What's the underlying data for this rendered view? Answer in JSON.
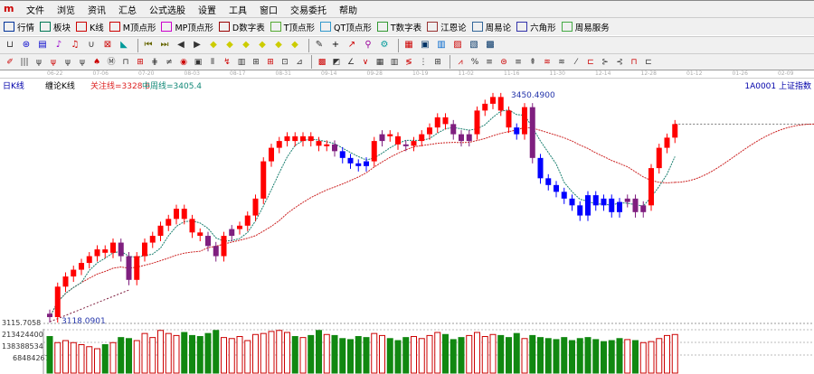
{
  "menu": [
    "文件",
    "浏览",
    "资讯",
    "汇总",
    "公式选股",
    "设置",
    "工具",
    "窗口",
    "交易委托",
    "帮助"
  ],
  "toolbar": [
    {
      "label": "行情",
      "color": "#003399"
    },
    {
      "label": "板块",
      "color": "#007755"
    },
    {
      "label": "K线",
      "color": "#cc0000"
    },
    {
      "label": "M顶点形",
      "color": "#cc0000"
    },
    {
      "label": "MP顶点形",
      "color": "#cc00cc"
    },
    {
      "label": "D数字表",
      "color": "#990000"
    },
    {
      "label": "T顶点形",
      "color": "#55aa33"
    },
    {
      "label": "QT顶点形",
      "color": "#3399cc"
    },
    {
      "label": "T数字表",
      "color": "#339933"
    },
    {
      "label": "江恩论",
      "color": "#993333"
    },
    {
      "label": "周易论",
      "color": "#336699"
    },
    {
      "label": "六角形",
      "color": "#3333aa"
    },
    {
      "label": "周易服务",
      "color": "#44aa44"
    }
  ],
  "period_label": "日K线",
  "indicator_name": "缠论K线",
  "attention_line": "关注线=3328.6",
  "mid_line": "中周线=3405.4",
  "symbol": "1A0001 上证指数",
  "high_label": "3450.4900",
  "low_label": "3118.0901",
  "price_axis_label": "3115.7058",
  "volume_axis": [
    "213424400",
    "138388534",
    "68484267"
  ],
  "dates": [
    "06-22",
    "07-06",
    "07-20",
    "08-03",
    "08-17",
    "08-31",
    "09-14",
    "09-28",
    "10-19",
    "11-02",
    "11-16",
    "11-30",
    "12-14",
    "12-28",
    "01-12",
    "01-26",
    "02-09"
  ],
  "colors": {
    "up": "#ff0000",
    "down": "#0000ff",
    "neutral": "#7f1f7f",
    "ma_short": "#1a7f6f",
    "ma_long": "#cc2222",
    "vol_up": "#cc0000",
    "vol_down": "#118811"
  },
  "chart_data": {
    "type": "candlestick",
    "price_range": [
      3115.7058,
      3450.49
    ],
    "candles": [
      [
        3130,
        3125,
        "p"
      ],
      [
        3125,
        3170,
        "r"
      ],
      [
        3170,
        3185,
        "r"
      ],
      [
        3185,
        3195,
        "r"
      ],
      [
        3195,
        3205,
        "r"
      ],
      [
        3205,
        3215,
        "r"
      ],
      [
        3215,
        3225,
        "r"
      ],
      [
        3225,
        3220,
        "r"
      ],
      [
        3220,
        3235,
        "r"
      ],
      [
        3235,
        3215,
        "p"
      ],
      [
        3215,
        3180,
        "p"
      ],
      [
        3180,
        3215,
        "r"
      ],
      [
        3215,
        3235,
        "r"
      ],
      [
        3235,
        3245,
        "r"
      ],
      [
        3245,
        3260,
        "r"
      ],
      [
        3260,
        3270,
        "r"
      ],
      [
        3270,
        3285,
        "r"
      ],
      [
        3285,
        3270,
        "r"
      ],
      [
        3270,
        3250,
        "r"
      ],
      [
        3250,
        3245,
        "r"
      ],
      [
        3245,
        3230,
        "p"
      ],
      [
        3230,
        3215,
        "p"
      ],
      [
        3215,
        3245,
        "r"
      ],
      [
        3245,
        3255,
        "p"
      ],
      [
        3255,
        3260,
        "r"
      ],
      [
        3260,
        3275,
        "r"
      ],
      [
        3275,
        3300,
        "r"
      ],
      [
        3300,
        3355,
        "r"
      ],
      [
        3355,
        3375,
        "r"
      ],
      [
        3375,
        3385,
        "r"
      ],
      [
        3385,
        3392,
        "r"
      ],
      [
        3392,
        3385,
        "r"
      ],
      [
        3385,
        3392,
        "r"
      ],
      [
        3392,
        3385,
        "r"
      ],
      [
        3385,
        3378,
        "r"
      ],
      [
        3378,
        3380,
        "r"
      ],
      [
        3380,
        3370,
        "p"
      ],
      [
        3370,
        3360,
        "b"
      ],
      [
        3360,
        3352,
        "b"
      ],
      [
        3352,
        3348,
        "b"
      ],
      [
        3348,
        3355,
        "b"
      ],
      [
        3355,
        3385,
        "r"
      ],
      [
        3385,
        3395,
        "p"
      ],
      [
        3395,
        3392,
        "r"
      ],
      [
        3392,
        3380,
        "r"
      ],
      [
        3380,
        3378,
        "p"
      ],
      [
        3378,
        3385,
        "r"
      ],
      [
        3385,
        3395,
        "r"
      ],
      [
        3395,
        3405,
        "r"
      ],
      [
        3405,
        3420,
        "r"
      ],
      [
        3420,
        3410,
        "r"
      ],
      [
        3410,
        3395,
        "p"
      ],
      [
        3395,
        3385,
        "p"
      ],
      [
        3385,
        3395,
        "p"
      ],
      [
        3395,
        3430,
        "r"
      ],
      [
        3430,
        3440,
        "r"
      ],
      [
        3440,
        3450,
        "r"
      ],
      [
        3450,
        3430,
        "r"
      ],
      [
        3430,
        3405,
        "r"
      ],
      [
        3405,
        3395,
        "b"
      ],
      [
        3395,
        3435,
        "r"
      ],
      [
        3435,
        3360,
        "p"
      ],
      [
        3360,
        3330,
        "b"
      ],
      [
        3330,
        3320,
        "b"
      ],
      [
        3320,
        3310,
        "b"
      ],
      [
        3310,
        3300,
        "b"
      ],
      [
        3300,
        3290,
        "b"
      ],
      [
        3290,
        3275,
        "b"
      ],
      [
        3275,
        3305,
        "b"
      ],
      [
        3305,
        3290,
        "b"
      ],
      [
        3290,
        3300,
        "b"
      ],
      [
        3300,
        3280,
        "b"
      ],
      [
        3280,
        3295,
        "b"
      ],
      [
        3295,
        3300,
        "p"
      ],
      [
        3300,
        3280,
        "p"
      ],
      [
        3280,
        3290,
        "p"
      ],
      [
        3290,
        3345,
        "r"
      ],
      [
        3345,
        3375,
        "r"
      ],
      [
        3375,
        3390,
        "r"
      ],
      [
        3390,
        3410,
        "r"
      ]
    ],
    "volume": [
      180,
      150,
      160,
      150,
      140,
      130,
      120,
      140,
      150,
      175,
      170,
      160,
      195,
      175,
      210,
      195,
      185,
      200,
      185,
      180,
      195,
      210,
      175,
      170,
      180,
      160,
      190,
      195,
      205,
      210,
      200,
      180,
      175,
      185,
      210,
      190,
      185,
      170,
      165,
      180,
      175,
      195,
      185,
      170,
      160,
      175,
      180,
      170,
      185,
      200,
      190,
      165,
      175,
      185,
      200,
      180,
      190,
      185,
      175,
      195,
      170,
      185,
      175,
      170,
      165,
      175,
      160,
      170,
      175,
      165,
      155,
      160,
      170,
      165,
      160,
      150,
      155,
      170,
      185,
      190
    ]
  }
}
